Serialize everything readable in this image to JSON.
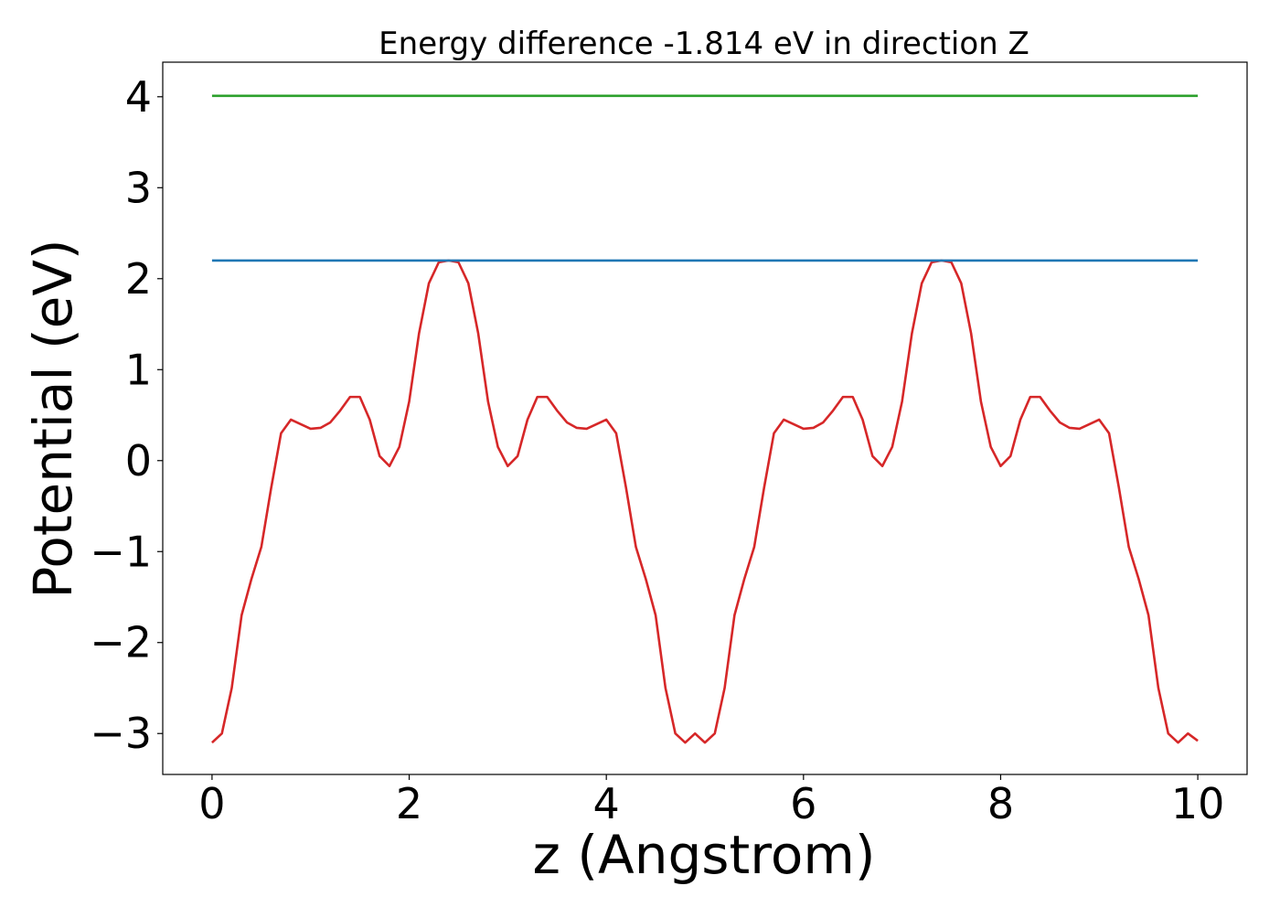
{
  "chart_data": {
    "type": "line",
    "title": "Energy difference -1.814 eV in direction Z",
    "xlabel": "z (Angstrom)",
    "ylabel": "Potential (eV)",
    "xlim": [
      -0.5,
      10.5
    ],
    "ylim": [
      -3.45,
      4.38
    ],
    "xticks": [
      0,
      2,
      4,
      6,
      8,
      10
    ],
    "xtick_labels": [
      "0",
      "2",
      "4",
      "6",
      "8",
      "10"
    ],
    "yticks": [
      -3,
      -2,
      -1,
      0,
      1,
      2,
      3,
      4
    ],
    "ytick_labels": [
      "−3",
      "−2",
      "−1",
      "0",
      "1",
      "2",
      "3",
      "4"
    ],
    "grid": false,
    "legend": "none",
    "series": [
      {
        "color": "#d62728",
        "x": [
          0.0,
          0.1,
          0.2,
          0.3,
          0.4,
          0.5,
          0.6,
          0.7,
          0.8,
          0.9,
          1.0,
          1.1,
          1.2,
          1.3,
          1.4,
          1.5,
          1.6,
          1.7,
          1.8,
          1.9,
          2.0,
          2.1,
          2.2,
          2.3,
          2.4,
          2.5,
          2.6,
          2.7,
          2.8,
          2.9,
          3.0,
          3.1,
          3.2,
          3.3,
          3.4,
          3.5,
          3.6,
          3.7,
          3.8,
          3.9,
          4.0,
          4.1,
          4.2,
          4.3,
          4.4,
          4.5,
          4.6,
          4.7,
          4.8,
          4.9,
          5.0,
          5.1,
          5.2,
          5.3,
          5.4,
          5.5,
          5.6,
          5.7,
          5.8,
          5.9,
          6.0,
          6.1,
          6.2,
          6.3,
          6.4,
          6.5,
          6.6,
          6.7,
          6.8,
          6.9,
          7.0,
          7.1,
          7.2,
          7.3,
          7.4,
          7.5,
          7.6,
          7.7,
          7.8,
          7.9,
          8.0,
          8.1,
          8.2,
          8.3,
          8.4,
          8.5,
          8.6,
          8.7,
          8.8,
          8.9,
          9.0,
          9.1,
          9.2,
          9.3,
          9.4,
          9.5,
          9.6,
          9.7,
          9.8,
          9.9,
          10.0
        ],
        "y": [
          -3.1,
          -3.0,
          -2.5,
          -1.7,
          -1.3,
          -0.95,
          -0.3,
          0.3,
          0.45,
          0.4,
          0.35,
          0.36,
          0.42,
          0.55,
          0.7,
          0.7,
          0.45,
          0.05,
          -0.06,
          0.15,
          0.65,
          1.4,
          1.95,
          2.18,
          2.2,
          2.18,
          1.95,
          1.4,
          0.65,
          0.15,
          -0.06,
          0.05,
          0.45,
          0.7,
          0.7,
          0.55,
          0.42,
          0.36,
          0.35,
          0.4,
          0.45,
          0.3,
          -0.3,
          -0.95,
          -1.3,
          -1.7,
          -2.5,
          -3.0,
          -3.1,
          -3.0,
          -3.1,
          -3.0,
          -2.5,
          -1.7,
          -1.3,
          -0.95,
          -0.3,
          0.3,
          0.45,
          0.4,
          0.35,
          0.36,
          0.42,
          0.55,
          0.7,
          0.7,
          0.45,
          0.05,
          -0.06,
          0.15,
          0.65,
          1.4,
          1.95,
          2.18,
          2.2,
          2.18,
          1.95,
          1.4,
          0.65,
          0.15,
          -0.06,
          0.05,
          0.45,
          0.7,
          0.7,
          0.55,
          0.42,
          0.36,
          0.35,
          0.4,
          0.45,
          0.3,
          -0.3,
          -0.95,
          -1.3,
          -1.7,
          -2.5,
          -3.0,
          -3.1,
          -3.0,
          -3.08
        ]
      },
      {
        "color": "#1f77b4",
        "x": [
          0,
          10
        ],
        "y": [
          2.2,
          2.2
        ]
      },
      {
        "color": "#2ca02c",
        "x": [
          0,
          10
        ],
        "y": [
          4.01,
          4.01
        ]
      }
    ]
  }
}
